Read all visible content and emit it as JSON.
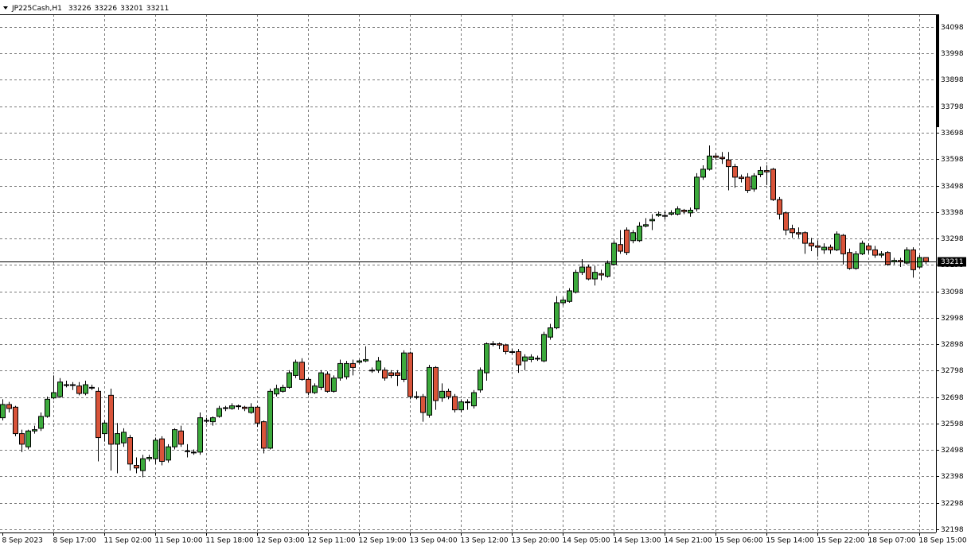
{
  "chart_data": {
    "type": "candlestick",
    "title": "JP225Cash,H1",
    "up_color": "#3caa3c",
    "down_color": "#d9543a",
    "grid": true,
    "price_line": true,
    "ylim": [
      32186,
      34146
    ],
    "yticks": [
      32198,
      32298,
      32398,
      32498,
      32598,
      32698,
      32798,
      32898,
      32998,
      33098,
      33198,
      33298,
      33398,
      33498,
      33598,
      33698,
      33798,
      33898,
      33998,
      34098
    ],
    "categories": [
      "8 Sep 2023",
      null,
      null,
      null,
      null,
      null,
      null,
      null,
      "8 Sep 17:00",
      null,
      null,
      null,
      null,
      null,
      null,
      null,
      "11 Sep 02:00",
      null,
      null,
      null,
      null,
      null,
      null,
      null,
      "11 Sep 10:00",
      null,
      null,
      null,
      null,
      null,
      null,
      null,
      "11 Sep 18:00",
      null,
      null,
      null,
      null,
      null,
      null,
      null,
      "12 Sep 03:00",
      null,
      null,
      null,
      null,
      null,
      null,
      null,
      "12 Sep 11:00",
      null,
      null,
      null,
      null,
      null,
      null,
      null,
      "12 Sep 19:00",
      null,
      null,
      null,
      null,
      null,
      null,
      null,
      "13 Sep 04:00",
      null,
      null,
      null,
      null,
      null,
      null,
      null,
      "13 Sep 12:00",
      null,
      null,
      null,
      null,
      null,
      null,
      null,
      "13 Sep 20:00",
      null,
      null,
      null,
      null,
      null,
      null,
      null,
      "14 Sep 05:00",
      null,
      null,
      null,
      null,
      null,
      null,
      null,
      "14 Sep 13:00",
      null,
      null,
      null,
      null,
      null,
      null,
      null,
      "14 Sep 21:00",
      null,
      null,
      null,
      null,
      null,
      null,
      null,
      "15 Sep 06:00",
      null,
      null,
      null,
      null,
      null,
      null,
      null,
      "15 Sep 14:00",
      null,
      null,
      null,
      null,
      null,
      null,
      null,
      "15 Sep 22:00",
      null,
      null,
      null,
      null,
      null,
      null,
      null,
      "18 Sep 07:00",
      null,
      null,
      null,
      null,
      null,
      null,
      null,
      "18 Sep 15:00",
      null
    ],
    "open": [
      32620,
      32670,
      32660,
      32560,
      32510,
      32570,
      32580,
      32625,
      32695,
      32700,
      32745,
      32745,
      32740,
      32712,
      32735,
      32720,
      32560,
      32705,
      32520,
      32525,
      32545,
      32440,
      32420,
      32465,
      32465,
      32540,
      32460,
      32510,
      32570,
      32495,
      32490,
      32490,
      32610,
      32605,
      32625,
      32655,
      32655,
      32665,
      32660,
      32640,
      32660,
      32605,
      32505,
      32710,
      32720,
      32735,
      32780,
      32830,
      32765,
      32715,
      32735,
      32785,
      32720,
      32770,
      32775,
      32825,
      32830,
      32835,
      32800,
      32800,
      32800,
      32790,
      32790,
      32765,
      32865,
      32700,
      32700,
      32630,
      32810,
      32695,
      32720,
      32700,
      32650,
      32680,
      32665,
      32725,
      32790,
      32900,
      32900,
      32895,
      32870,
      32870,
      32835,
      32840,
      32845,
      32835,
      32925,
      32960,
      33055,
      33060,
      33095,
      33170,
      33190,
      33145,
      33165,
      33155,
      33200,
      33275,
      33330,
      33290,
      33290,
      33345,
      33365,
      33385,
      33385,
      33390,
      33390,
      33405,
      33395,
      33410,
      33530,
      33560,
      33610,
      33605,
      33595,
      33570,
      33530,
      33530,
      33485,
      33540,
      33555,
      33560,
      33445,
      33395,
      33335,
      33320,
      33320,
      33280,
      33270,
      33255,
      33265,
      33255,
      33310,
      33245,
      33185,
      33240,
      33270,
      33255,
      33235,
      33245,
      33210,
      33215,
      33205,
      33255,
      33190,
      33226
    ],
    "high": [
      32690,
      32680,
      32665,
      32575,
      32575,
      32590,
      32640,
      32700,
      32780,
      32770,
      32760,
      32755,
      32755,
      32760,
      32745,
      32735,
      32610,
      32730,
      32600,
      32580,
      32555,
      32470,
      32480,
      32480,
      32545,
      32550,
      32520,
      32580,
      32590,
      32520,
      32500,
      32640,
      32620,
      32625,
      32665,
      32665,
      32675,
      32670,
      32665,
      32675,
      32665,
      32610,
      32730,
      32745,
      32745,
      32800,
      32840,
      32845,
      32770,
      32750,
      32800,
      32795,
      32780,
      32840,
      32835,
      32840,
      32840,
      32890,
      32810,
      32850,
      32810,
      32800,
      32800,
      32875,
      32870,
      32720,
      32710,
      32820,
      32815,
      32750,
      32730,
      32710,
      32690,
      32690,
      32725,
      32810,
      32905,
      32910,
      32905,
      32900,
      32880,
      32880,
      32860,
      32860,
      32855,
      32945,
      32975,
      33080,
      33075,
      33110,
      33180,
      33220,
      33200,
      33195,
      33180,
      33215,
      33290,
      33330,
      33340,
      33330,
      33360,
      33375,
      33390,
      33400,
      33400,
      33405,
      33420,
      33410,
      33415,
      33545,
      33575,
      33650,
      33620,
      33625,
      33625,
      33580,
      33540,
      33545,
      33545,
      33570,
      33575,
      33565,
      33455,
      33400,
      33350,
      33340,
      33325,
      33300,
      33290,
      33280,
      33275,
      33325,
      33315,
      33260,
      33250,
      33290,
      33280,
      33270,
      33250,
      33250,
      33225,
      33225,
      33265,
      33265,
      33235,
      33226
    ],
    "low": [
      32610,
      32640,
      32550,
      32490,
      32500,
      32560,
      32570,
      32620,
      32690,
      32695,
      32735,
      32725,
      32705,
      32705,
      32725,
      32455,
      32530,
      32420,
      32410,
      32510,
      32420,
      32410,
      32395,
      32455,
      32445,
      32440,
      32450,
      32500,
      32510,
      32470,
      32480,
      32480,
      32600,
      32590,
      32620,
      32645,
      32650,
      32650,
      32645,
      32635,
      32585,
      32485,
      32500,
      32700,
      32715,
      32730,
      32770,
      32760,
      32705,
      32710,
      32725,
      32715,
      32715,
      32760,
      32765,
      32780,
      32825,
      32830,
      32790,
      32790,
      32760,
      32770,
      32740,
      32755,
      32690,
      32690,
      32605,
      32620,
      32650,
      32680,
      32690,
      32640,
      32640,
      32650,
      32655,
      32715,
      32760,
      32890,
      32880,
      32860,
      32860,
      32790,
      32800,
      32830,
      32835,
      32830,
      32915,
      32955,
      33045,
      33055,
      33090,
      33160,
      33140,
      33120,
      33140,
      33150,
      33195,
      33240,
      33235,
      33280,
      33285,
      33340,
      33330,
      33380,
      33370,
      33385,
      33385,
      33390,
      33380,
      33400,
      33520,
      33555,
      33595,
      33580,
      33480,
      33490,
      33510,
      33470,
      33475,
      33530,
      33500,
      33440,
      33370,
      33310,
      33300,
      33300,
      33240,
      33250,
      33230,
      33240,
      33240,
      33250,
      33200,
      33180,
      33180,
      33235,
      33240,
      33225,
      33225,
      33195,
      33200,
      33190,
      33200,
      33150,
      33185,
      33201
    ],
    "close": [
      32670,
      32655,
      32560,
      32520,
      32570,
      32575,
      32625,
      32690,
      32715,
      32755,
      32745,
      32742,
      32712,
      32745,
      32735,
      32545,
      32600,
      32520,
      32560,
      32565,
      32445,
      32430,
      32465,
      32470,
      32535,
      32455,
      32510,
      32575,
      32520,
      32495,
      32490,
      32620,
      32610,
      32620,
      32655,
      32658,
      32665,
      32663,
      32655,
      32660,
      32600,
      32505,
      32720,
      32730,
      32735,
      32790,
      32830,
      32765,
      32715,
      32740,
      32790,
      32720,
      32770,
      32825,
      32825,
      32810,
      32835,
      32840,
      32800,
      32835,
      32770,
      32780,
      32780,
      32865,
      32700,
      32700,
      32640,
      32810,
      32685,
      32720,
      32700,
      32650,
      32680,
      32680,
      32715,
      32800,
      32900,
      32900,
      32895,
      32870,
      32870,
      32820,
      32850,
      32850,
      32845,
      32935,
      32960,
      33055,
      33065,
      33100,
      33170,
      33190,
      33145,
      33170,
      33160,
      33205,
      33280,
      33250,
      33245,
      33320,
      33345,
      33350,
      33370,
      33390,
      33385,
      33395,
      33410,
      33400,
      33405,
      33530,
      33560,
      33610,
      33605,
      33600,
      33570,
      33530,
      33525,
      33480,
      33535,
      33555,
      33550,
      33445,
      33390,
      33330,
      33320,
      33315,
      33280,
      33270,
      33265,
      33265,
      33255,
      33315,
      33240,
      33185,
      33240,
      33280,
      33255,
      33235,
      33240,
      33200,
      33215,
      33210,
      33255,
      33180,
      33226,
      33211
    ]
  }
}
